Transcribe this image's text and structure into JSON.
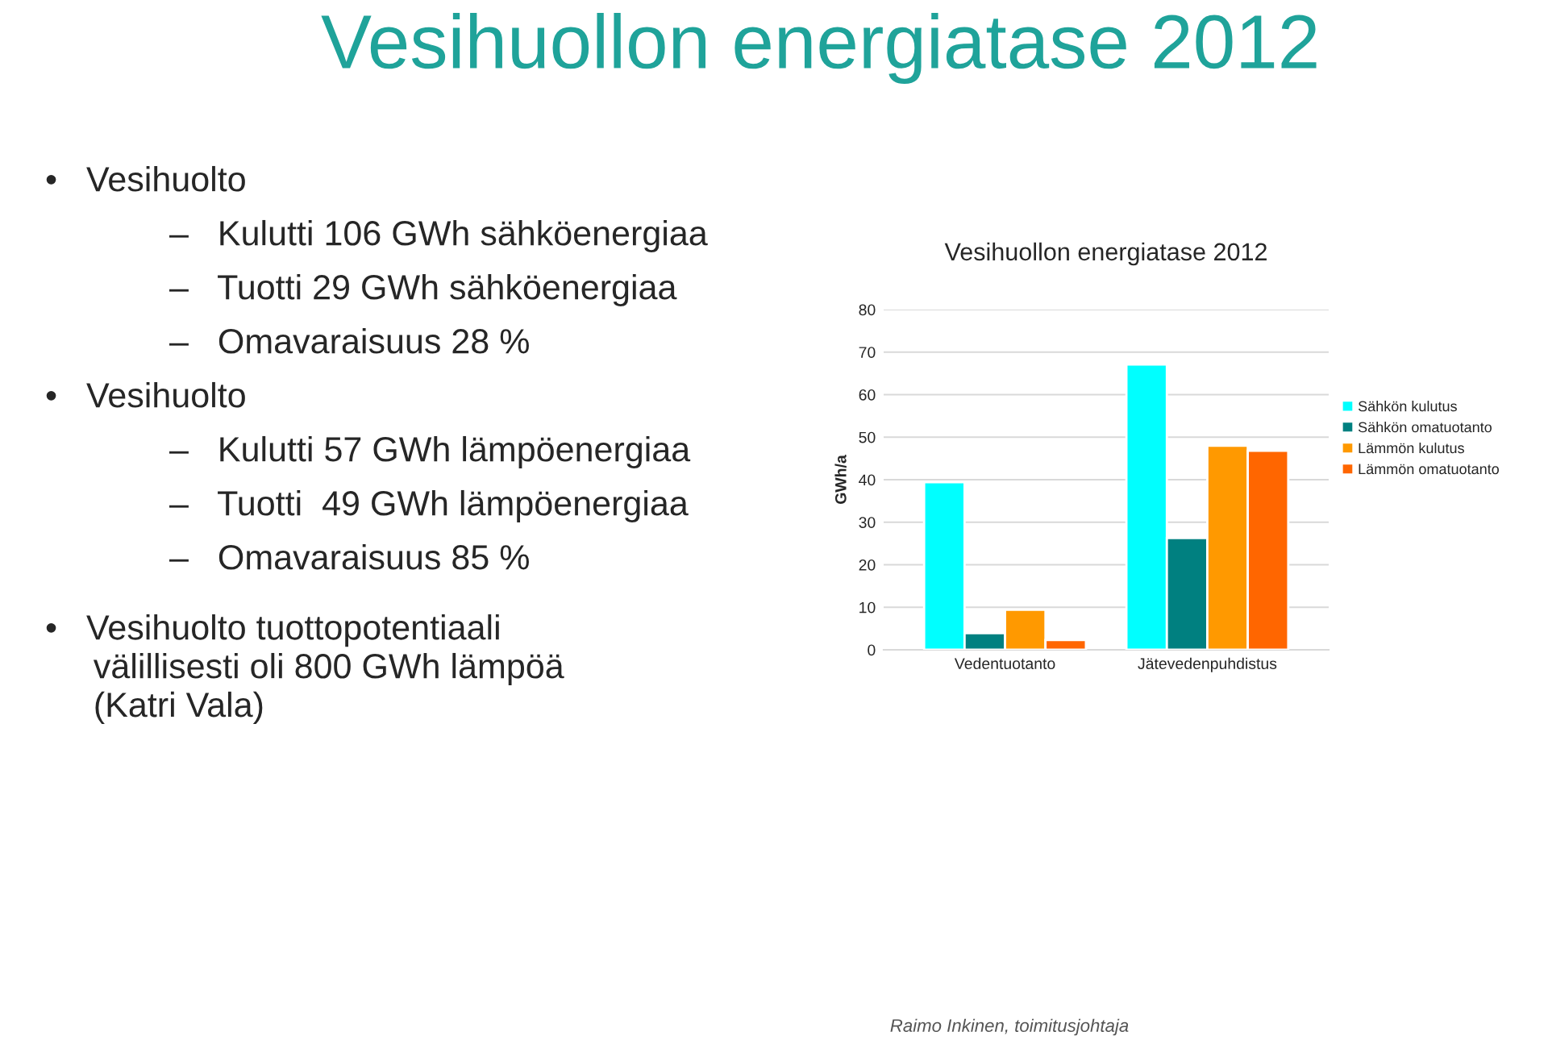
{
  "chart_data": {
    "type": "bar",
    "title": "Vesihuollon energiatase 2012",
    "ylabel": "GWh/a",
    "categories": [
      "Vedentuotanto",
      "Jätevedenpuhdistus"
    ],
    "series": [
      {
        "name": "Sähkön kulutus",
        "color": "#00ffff",
        "values": [
          39.4,
          67.1
        ]
      },
      {
        "name": "Sähkön omatuotanto",
        "color": "#008080",
        "values": [
          3.9,
          26.3
        ]
      },
      {
        "name": "Lämmön kulutus",
        "color": "#ff9900",
        "values": [
          9.4,
          48.0
        ]
      },
      {
        "name": "Lämmön omatuotanto",
        "color": "#ff6600",
        "values": [
          2.3,
          46.8
        ]
      }
    ],
    "ylim": [
      0,
      80
    ],
    "yticks": [
      0,
      10,
      20,
      30,
      40,
      50,
      60,
      70,
      80
    ],
    "grid": "y",
    "legend": "right",
    "annotations": [
      "Vesihuollon energiatase 2012",
      "•   Vesihuolto",
      "–   Kulutti 106 GWh sähköenergiaa",
      "–   Tuotti 29 GWh sähköenergiaa",
      "–   Omavaraisuus 28 %",
      "•   Vesihuolto",
      "–   Kulutti 57 GWh lämpöenergiaa",
      "–   Tuotti  49 GWh lämpöenergiaa",
      "–   Omavaraisuus 85 %",
      "•   Vesihuolto tuottopotentiaali\n     välillisesti oli 800 GWh lämpöä\n     (Katri Vala)",
      "Raimo Inkinen, toimitusjohtaja"
    ]
  }
}
